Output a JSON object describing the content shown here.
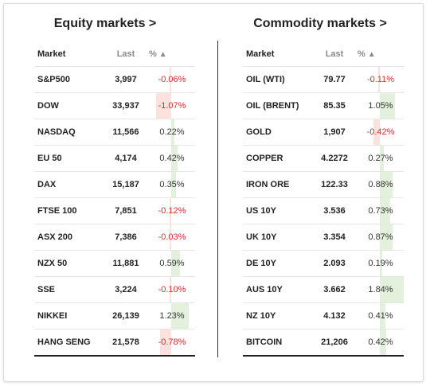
{
  "equity": {
    "title": "Equity markets >",
    "headers": {
      "market": "Market",
      "last": "Last",
      "pct": "%"
    },
    "sort_icon": "sort-up-triangle",
    "rows": [
      {
        "market": "S&P500",
        "last": "3,997",
        "pct": "-0.06%",
        "value": -0.06
      },
      {
        "market": "DOW",
        "last": "33,937",
        "pct": "-1.07%",
        "value": -1.07
      },
      {
        "market": "NASDAQ",
        "last": "11,566",
        "pct": "0.22%",
        "value": 0.22
      },
      {
        "market": "EU 50",
        "last": "4,174",
        "pct": "0.42%",
        "value": 0.42
      },
      {
        "market": "DAX",
        "last": "15,187",
        "pct": "0.35%",
        "value": 0.35
      },
      {
        "market": "FTSE 100",
        "last": "7,851",
        "pct": "-0.12%",
        "value": -0.12
      },
      {
        "market": "ASX 200",
        "last": "7,386",
        "pct": "-0.03%",
        "value": -0.03
      },
      {
        "market": "NZX 50",
        "last": "11,881",
        "pct": "0.59%",
        "value": 0.59
      },
      {
        "market": "SSE",
        "last": "3,224",
        "pct": "-0.10%",
        "value": -0.1
      },
      {
        "market": "NIKKEI",
        "last": "26,139",
        "pct": "1.23%",
        "value": 1.23
      },
      {
        "market": "HANG SENG",
        "last": "21,578",
        "pct": "-0.78%",
        "value": -0.78
      }
    ]
  },
  "commodity": {
    "title": "Commodity markets >",
    "headers": {
      "market": "Market",
      "last": "Last",
      "pct": "%"
    },
    "sort_icon": "sort-up-triangle",
    "rows": [
      {
        "market": "OIL (WTI)",
        "last": "79.77",
        "pct": "-0.11%",
        "value": -0.11
      },
      {
        "market": "OIL (BRENT)",
        "last": "85.35",
        "pct": "1.05%",
        "value": 1.05
      },
      {
        "market": "GOLD",
        "last": "1,907",
        "pct": "-0.42%",
        "value": -0.42
      },
      {
        "market": "COPPER",
        "last": "4.2272",
        "pct": "0.27%",
        "value": 0.27
      },
      {
        "market": "IRON ORE",
        "last": "122.33",
        "pct": "0.88%",
        "value": 0.88
      },
      {
        "market": "US 10Y",
        "last": "3.536",
        "pct": "0.73%",
        "value": 0.73
      },
      {
        "market": "UK 10Y",
        "last": "3.354",
        "pct": "0.87%",
        "value": 0.87
      },
      {
        "market": "DE 10Y",
        "last": "2.093",
        "pct": "0.19%",
        "value": 0.19
      },
      {
        "market": "AUS 10Y",
        "last": "3.662",
        "pct": "1.84%",
        "value": 1.84
      },
      {
        "market": "NZ 10Y",
        "last": "4.132",
        "pct": "0.41%",
        "value": 0.41
      },
      {
        "market": "BITCOIN",
        "last": "21,206",
        "pct": "0.42%",
        "value": 0.42
      }
    ]
  },
  "colors": {
    "positive_bar": "#e2f0dc",
    "negative_bar": "#fbe2dc",
    "negative_text": "#d32f2f",
    "axis": "#e6e6e6"
  }
}
